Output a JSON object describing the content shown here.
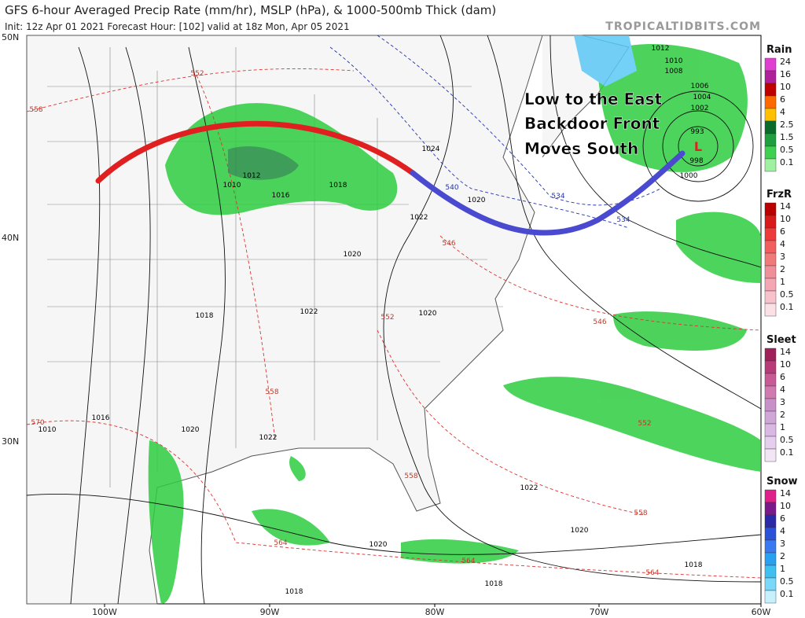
{
  "header": {
    "title": "GFS 6-hour Averaged Precip Rate (mm/hr), MSLP (hPa), & 1000-500mb Thick (dam)",
    "subtitle": "Init: 12z Apr 01 2021   Forecast Hour: [102]   valid at 18z Mon, Apr 05 2021",
    "brand": "TROPICALTIDBITS.COM"
  },
  "lat_labels": [
    "50N",
    "40N",
    "30N"
  ],
  "lon_labels": [
    "100W",
    "90W",
    "80W",
    "70W",
    "60W"
  ],
  "annotations": [
    "Low to the East",
    "Backdoor Front",
    "Moves South"
  ],
  "low_symbol": "L",
  "isobar_labels": [
    "1012",
    "1010",
    "1008",
    "1006",
    "1004",
    "1002",
    "998",
    "1000",
    "993",
    "1024",
    "1020",
    "1022",
    "1010",
    "1012",
    "1016",
    "1018",
    "1020",
    "1022",
    "1020",
    "1018",
    "1016",
    "1020",
    "1022",
    "1022",
    "1020",
    "1020",
    "1018",
    "1018",
    "1018",
    "1010"
  ],
  "thickness_labels": [
    "552",
    "558",
    "546",
    "552",
    "546",
    "558",
    "570",
    "552",
    "558",
    "558",
    "564",
    "564",
    "564"
  ],
  "thickness_labels_upper": [
    "540",
    "534",
    "534"
  ],
  "legend": [
    {
      "title": "Rain",
      "labels": [
        "24",
        "16",
        "10",
        "6",
        "4",
        "2.5",
        "1.5",
        "0.5",
        "0.1"
      ],
      "colors": [
        "#e040d0",
        "#b0209a",
        "#c00000",
        "#ff6a00",
        "#ffc000",
        "#0b6b2a",
        "#1e9e3e",
        "#3fd050",
        "#9ff0a0"
      ]
    },
    {
      "title": "FrzR",
      "labels": [
        "14",
        "10",
        "6",
        "4",
        "3",
        "2",
        "1",
        "0.5",
        "0.1"
      ],
      "colors": [
        "#b80000",
        "#d81a1a",
        "#ee3a3a",
        "#f25e5e",
        "#f07a7a",
        "#ee8f9a",
        "#f4a6b4",
        "#f7c2cc",
        "#fbe0e6"
      ]
    },
    {
      "title": "Sleet",
      "labels": [
        "14",
        "10",
        "6",
        "4",
        "3",
        "2",
        "1",
        "0.5",
        "0.1"
      ],
      "colors": [
        "#a0205a",
        "#b83a78",
        "#c85a96",
        "#d07ab0",
        "#c890c8",
        "#d0a6d8",
        "#dab8e4",
        "#e6cfee",
        "#f2e6f6"
      ]
    },
    {
      "title": "Snow",
      "labels": [
        "14",
        "10",
        "6",
        "4",
        "3",
        "2",
        "1",
        "0.5",
        "0.1"
      ],
      "colors": [
        "#e0208a",
        "#7a1a8a",
        "#2a2aa8",
        "#2a52d8",
        "#3a7af0",
        "#2aa0f0",
        "#40c0f0",
        "#7ad8f8",
        "#c8f0fc"
      ]
    }
  ]
}
